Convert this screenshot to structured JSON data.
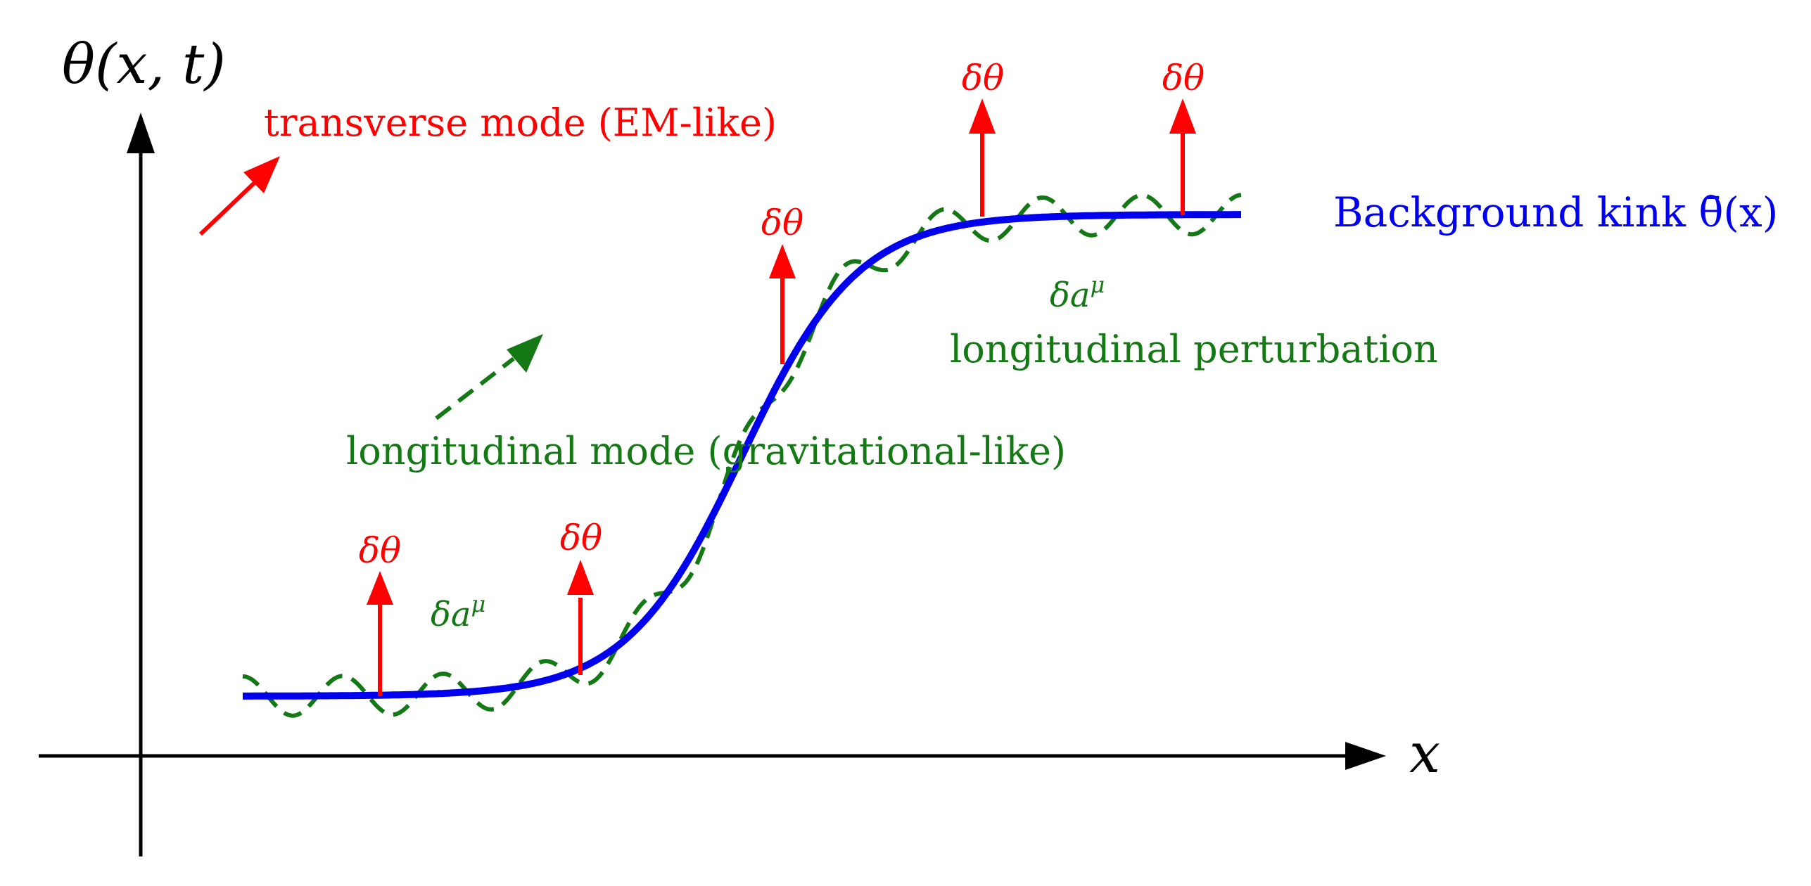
{
  "axes": {
    "y_label": "θ(x, t)",
    "x_label": "x"
  },
  "colors": {
    "axis": "#000000",
    "kink": "#0000ee",
    "transverse": "#ff0000",
    "longitudinal": "#147814"
  },
  "labels": {
    "transverse_mode": "transverse mode (EM-like)",
    "longitudinal_mode": "longitudinal mode (gravitational-like)",
    "background_kink": "Background kink θ̄(x)",
    "longitudinal_perturbation": "longitudinal perturbation",
    "delta_theta": "δθ",
    "delta_a_left": "δa",
    "delta_a_right": "δa",
    "mu": "μ"
  },
  "delta_theta_count": 5
}
